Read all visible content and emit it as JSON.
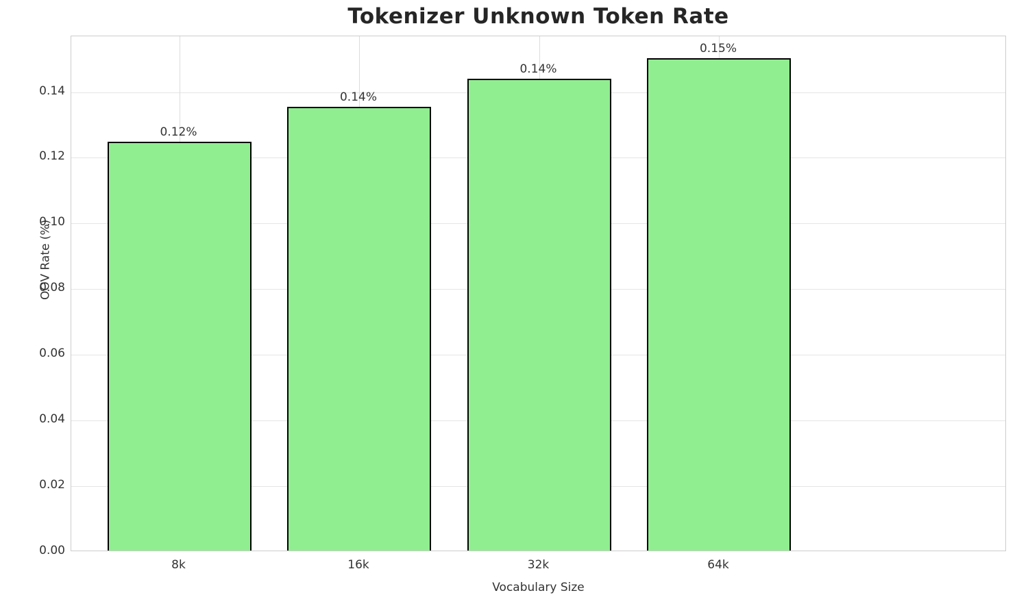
{
  "chart_data": {
    "type": "bar",
    "title": "Tokenizer Unknown Token Rate",
    "xlabel": "Vocabulary Size",
    "ylabel": "OOV Rate (%)",
    "categories": [
      "8k",
      "16k",
      "32k",
      "64k"
    ],
    "values": [
      0.1245,
      0.1352,
      0.1436,
      0.15
    ],
    "bar_labels": [
      "0.12%",
      "0.14%",
      "0.14%",
      "0.15%"
    ],
    "ytick_labels": [
      "0.00",
      "0.02",
      "0.04",
      "0.06",
      "0.08",
      "0.10",
      "0.12",
      "0.14"
    ],
    "yticks": [
      0.0,
      0.02,
      0.04,
      0.06,
      0.08,
      0.1,
      0.12,
      0.14
    ],
    "ylim": [
      0,
      0.157
    ],
    "grid": true,
    "legend_position": "none",
    "bar_color": "#90EE90",
    "bar_edge_color": "#000000",
    "grid_color": "#e5e5e5",
    "spine_color": "#cccccc",
    "text_color": "#333333",
    "title_color": "#262626"
  }
}
